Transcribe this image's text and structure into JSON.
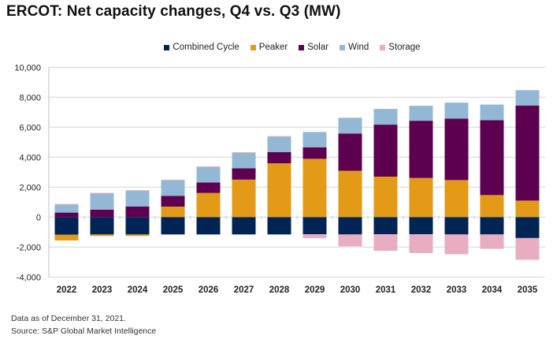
{
  "chart_data": {
    "type": "bar",
    "stacked": true,
    "title": "ERCOT: Net capacity changes, Q4 vs. Q3 (MW)",
    "xlabel": "",
    "ylabel": "",
    "ylim": [
      -4000,
      10000
    ],
    "yticks": [
      10000,
      8000,
      6000,
      4000,
      2000,
      0,
      -2000,
      -4000
    ],
    "ytick_labels": [
      "10,000",
      "8,000",
      "6,000",
      "4,000",
      "2,000",
      "0",
      "-2,000",
      "-4,000"
    ],
    "grid": true,
    "legend_position": "top-center",
    "categories": [
      "2022",
      "2023",
      "2024",
      "2025",
      "2026",
      "2027",
      "2028",
      "2029",
      "2030",
      "2031",
      "2032",
      "2033",
      "2034",
      "2035"
    ],
    "series": [
      {
        "name": "Combined Cycle",
        "color": "#002554",
        "values": [
          -1180,
          -1160,
          -1160,
          -1160,
          -1160,
          -1160,
          -1160,
          -1150,
          -1160,
          -1150,
          -1150,
          -1160,
          -1160,
          -1400
        ]
      },
      {
        "name": "Peaker",
        "color": "#e39a17",
        "values": [
          -380,
          -100,
          -100,
          700,
          1610,
          2500,
          3590,
          3890,
          3090,
          2700,
          2610,
          2470,
          1470,
          1100
        ]
      },
      {
        "name": "Solar",
        "color": "#5e0050",
        "values": [
          300,
          500,
          700,
          720,
          700,
          760,
          750,
          770,
          2490,
          3470,
          3820,
          4100,
          5000,
          6350
        ]
      },
      {
        "name": "Wind",
        "color": "#93b8d6",
        "values": [
          540,
          1070,
          1050,
          1030,
          1030,
          1020,
          1020,
          1020,
          1050,
          1050,
          1000,
          1070,
          1040,
          1020
        ]
      },
      {
        "name": "Storage",
        "color": "#e8adc0",
        "values": [
          40,
          50,
          50,
          50,
          50,
          50,
          50,
          -260,
          -790,
          -1100,
          -1250,
          -1320,
          -960,
          -1450
        ]
      }
    ]
  },
  "footer": {
    "note": "Data as of December 31, 2021.",
    "source": "Source: S&P Global Market Intelligence"
  }
}
